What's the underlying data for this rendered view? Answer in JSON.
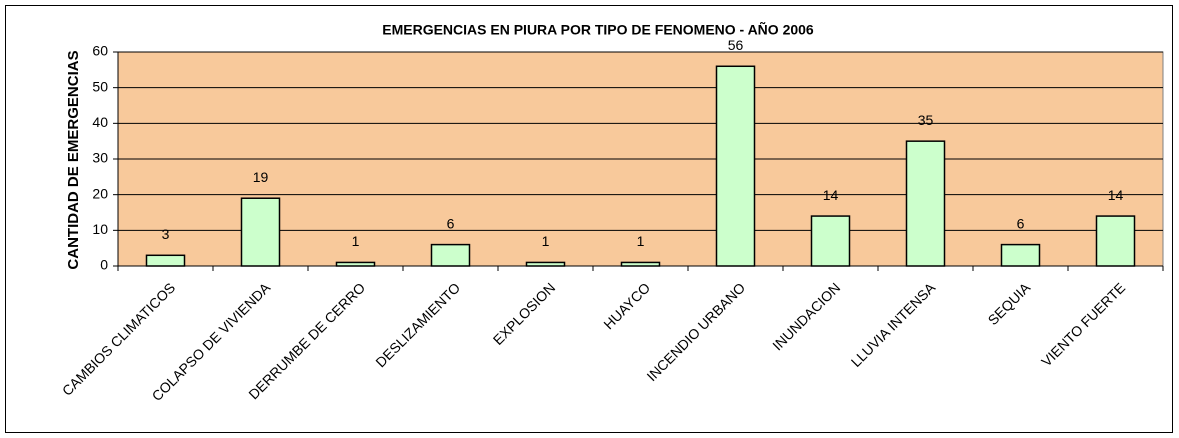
{
  "chart_data": {
    "type": "bar",
    "title": "EMERGENCIAS EN PIURA POR TIPO DE FENOMENO - AÑO 2006",
    "y_label": "CANTIDAD DE EMERGENCIAS",
    "categories": [
      "CAMBIOS CLIMATICOS",
      "COLAPSO DE VIVIENDA",
      "DERRUMBE DE CERRO",
      "DESLIZAMIENTO",
      "EXPLOSION",
      "HUAYCO",
      "INCENDIO URBANO",
      "INUNDACION",
      "LLUVIA INTENSA",
      "SEQUIA",
      "VIENTO FUERTE"
    ],
    "values": [
      3,
      19,
      1,
      6,
      1,
      1,
      56,
      14,
      35,
      6,
      14
    ],
    "color": "#ccffcc",
    "plot_background": "#f8c99b",
    "ylim": [
      0,
      60
    ],
    "yticks": [
      0,
      10,
      20,
      30,
      40,
      50,
      60
    ],
    "grid": true
  }
}
